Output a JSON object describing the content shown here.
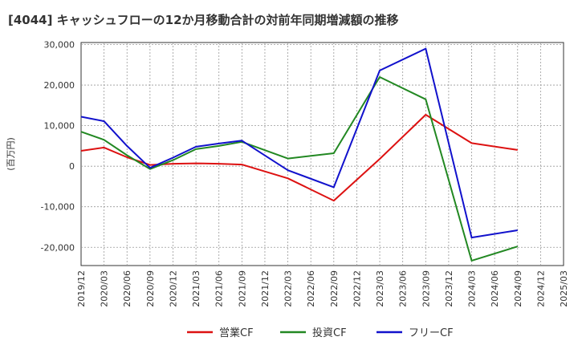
{
  "chart_data": {
    "type": "line",
    "title": "[4044]  キャッシュフローの12か月移動合計の対前年同期増減額の推移",
    "ylabel": "(百万円)",
    "xlabel": "",
    "ylim": [
      -24500,
      30500
    ],
    "yticks": [
      30000,
      20000,
      10000,
      0,
      -10000,
      -20000
    ],
    "ytick_labels": [
      "30,000",
      "20,000",
      "10,000",
      "0",
      "-10,000",
      "-20,000"
    ],
    "categories": [
      "2019/12",
      "2020/03",
      "2020/06",
      "2020/09",
      "2020/12",
      "2021/03",
      "2021/06",
      "2021/09",
      "2021/12",
      "2022/03",
      "2022/06",
      "2022/09",
      "2022/12",
      "2023/03",
      "2023/06",
      "2023/09",
      "2023/12",
      "2024/03",
      "2024/06",
      "2024/09",
      "2024/12",
      "2025/03"
    ],
    "grid": true,
    "legend_position": "bottom",
    "series": [
      {
        "name": "営業CF",
        "color": "#dd1111",
        "values": [
          3800,
          4600,
          2200,
          300,
          600,
          700,
          600,
          400,
          null,
          -3000,
          null,
          -8500,
          null,
          1800,
          null,
          12700,
          null,
          5700,
          null,
          4000,
          null,
          null
        ]
      },
      {
        "name": "投資CF",
        "color": "#228822",
        "values": [
          8500,
          6500,
          2700,
          -700,
          1500,
          4200,
          5000,
          6000,
          null,
          1900,
          null,
          3200,
          null,
          22000,
          null,
          16500,
          null,
          -23300,
          null,
          -19800,
          null,
          null
        ]
      },
      {
        "name": "フリーCF",
        "color": "#1111cc",
        "values": [
          12200,
          11100,
          5000,
          -400,
          2100,
          4800,
          5600,
          6300,
          null,
          -1000,
          null,
          -5200,
          null,
          23600,
          null,
          29000,
          null,
          -17600,
          null,
          -15800,
          null,
          null
        ]
      }
    ]
  }
}
